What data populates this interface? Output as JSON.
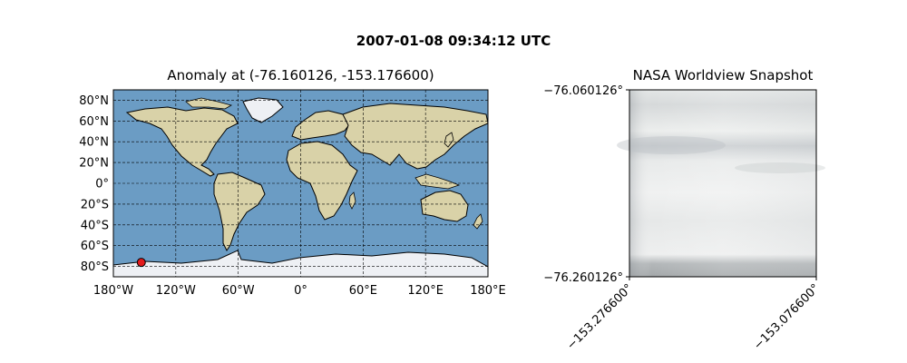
{
  "figure": {
    "suptitle": "2007-01-08 09:34:12 UTC"
  },
  "map_panel": {
    "title": "Anomaly at (-76.160126, -153.176600)",
    "lat_ticks": [
      "80°N",
      "60°N",
      "40°N",
      "20°N",
      "0°",
      "20°S",
      "40°S",
      "60°S",
      "80°S"
    ],
    "lat_values": [
      80,
      60,
      40,
      20,
      0,
      -20,
      -40,
      -60,
      -80
    ],
    "lon_ticks": [
      "180°W",
      "120°W",
      "60°W",
      "0°",
      "60°E",
      "120°E",
      "180°E"
    ],
    "lon_values": [
      -180,
      -120,
      -60,
      0,
      60,
      120,
      180
    ],
    "extent": {
      "lon": [
        -180,
        180
      ],
      "lat": [
        -90,
        90
      ]
    },
    "grid": true,
    "marker": {
      "lat": -76.160126,
      "lon": -153.1766,
      "color": "#e31a1c"
    },
    "colors": {
      "ocean": "#6b9cc4",
      "land": "#d9d2a8",
      "coast": "#000000",
      "antarctica": "#eef0f4"
    }
  },
  "snapshot_panel": {
    "title": "NASA Worldview Snapshot",
    "y_ticks": [
      "−76.060126°",
      "−76.260126°"
    ],
    "x_ticks": [
      "−153.276600°",
      "−153.076600°"
    ]
  }
}
